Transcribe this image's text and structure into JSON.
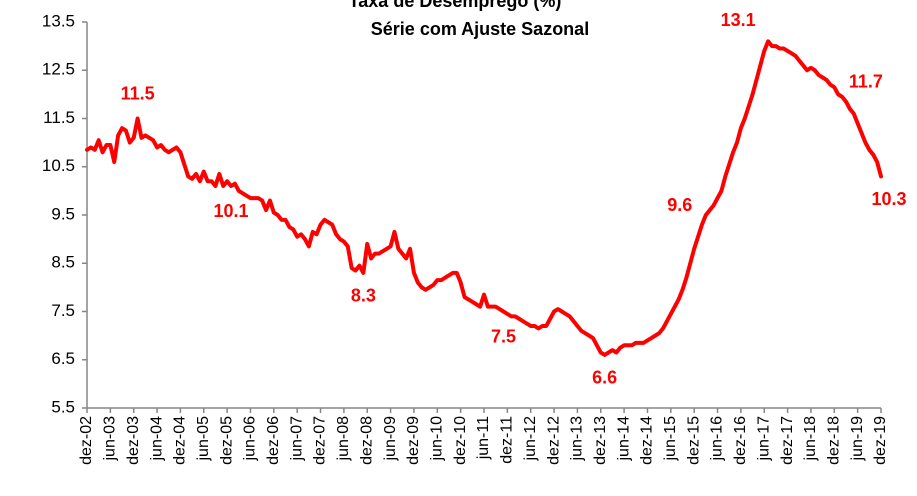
{
  "chart_data": {
    "type": "line",
    "title": "Taxa de Desemprego (%)",
    "subtitle": "Série com Ajuste Sazonal",
    "color": "#ff0000",
    "ylim": [
      5.5,
      13.5
    ],
    "yticks": [
      5.5,
      6.5,
      7.5,
      8.5,
      9.5,
      10.5,
      11.5,
      12.5,
      13.5
    ],
    "grid": false,
    "categories": [
      "dez-02",
      null,
      null,
      null,
      null,
      null,
      "jun-03",
      null,
      null,
      null,
      null,
      null,
      "dez-03",
      null,
      null,
      null,
      null,
      null,
      "jun-04",
      null,
      null,
      null,
      null,
      null,
      "dez-04",
      null,
      null,
      null,
      null,
      null,
      "jun-05",
      null,
      null,
      null,
      null,
      null,
      "dez-05",
      null,
      null,
      null,
      null,
      null,
      "jun-06",
      null,
      null,
      null,
      null,
      null,
      "dez-06",
      null,
      null,
      null,
      null,
      null,
      "jun-07",
      null,
      null,
      null,
      null,
      null,
      "dez-07",
      null,
      null,
      null,
      null,
      null,
      "jun-08",
      null,
      null,
      null,
      null,
      null,
      "dez-08",
      null,
      null,
      null,
      null,
      null,
      "jun-09",
      null,
      null,
      null,
      null,
      null,
      "dez-09",
      null,
      null,
      null,
      null,
      null,
      "jun-10",
      null,
      null,
      null,
      null,
      null,
      "dez-10",
      null,
      null,
      null,
      null,
      null,
      "jun-11",
      null,
      null,
      null,
      null,
      null,
      "dez-11",
      null,
      null,
      null,
      null,
      null,
      "jun-12",
      null,
      null,
      null,
      null,
      null,
      "dez-12",
      null,
      null,
      null,
      null,
      null,
      "jun-13",
      null,
      null,
      null,
      null,
      null,
      "dez-13",
      null,
      null,
      null,
      null,
      null,
      "jun-14",
      null,
      null,
      null,
      null,
      null,
      "dez-14",
      null,
      null,
      null,
      null,
      null,
      "jun-15",
      null,
      null,
      null,
      null,
      null,
      "dez-15",
      null,
      null,
      null,
      null,
      null,
      "jun-16",
      null,
      null,
      null,
      null,
      null,
      "dez-16",
      null,
      null,
      null,
      null,
      null,
      "jun-17",
      null,
      null,
      null,
      null,
      null,
      "dez-17",
      null,
      null,
      null,
      null,
      null,
      "jun-18",
      null,
      null,
      null,
      null,
      null,
      "dez-18",
      null,
      null,
      null,
      null,
      null,
      "jun-19",
      null,
      null,
      null,
      null,
      null,
      "dez-19"
    ],
    "values": [
      10.85,
      10.9,
      10.85,
      11.05,
      10.8,
      10.95,
      10.95,
      10.6,
      11.15,
      11.3,
      11.25,
      11.0,
      11.1,
      11.5,
      11.1,
      11.15,
      11.1,
      11.05,
      10.9,
      10.95,
      10.85,
      10.8,
      10.85,
      10.9,
      10.8,
      10.55,
      10.3,
      10.25,
      10.35,
      10.2,
      10.4,
      10.2,
      10.2,
      10.1,
      10.35,
      10.1,
      10.2,
      10.1,
      10.15,
      10.0,
      9.95,
      9.9,
      9.85,
      9.85,
      9.85,
      9.8,
      9.6,
      9.8,
      9.55,
      9.5,
      9.4,
      9.4,
      9.25,
      9.2,
      9.05,
      9.1,
      9.0,
      8.85,
      9.15,
      9.1,
      9.3,
      9.4,
      9.35,
      9.3,
      9.1,
      9.0,
      8.95,
      8.85,
      8.4,
      8.35,
      8.45,
      8.3,
      8.9,
      8.6,
      8.7,
      8.7,
      8.75,
      8.8,
      8.85,
      9.15,
      8.8,
      8.7,
      8.6,
      8.8,
      8.3,
      8.1,
      8.0,
      7.95,
      8.0,
      8.05,
      8.15,
      8.15,
      8.2,
      8.25,
      8.3,
      8.3,
      8.1,
      7.8,
      7.75,
      7.7,
      7.65,
      7.6,
      7.85,
      7.6,
      7.6,
      7.6,
      7.55,
      7.5,
      7.45,
      7.4,
      7.4,
      7.35,
      7.3,
      7.25,
      7.2,
      7.2,
      7.15,
      7.2,
      7.2,
      7.35,
      7.5,
      7.55,
      7.5,
      7.45,
      7.4,
      7.3,
      7.2,
      7.1,
      7.05,
      7.0,
      6.95,
      6.8,
      6.65,
      6.6,
      6.65,
      6.7,
      6.65,
      6.75,
      6.8,
      6.8,
      6.8,
      6.85,
      6.85,
      6.85,
      6.9,
      6.95,
      7.0,
      7.05,
      7.15,
      7.3,
      7.45,
      7.6,
      7.75,
      7.95,
      8.2,
      8.5,
      8.8,
      9.05,
      9.3,
      9.5,
      9.6,
      9.7,
      9.85,
      10.0,
      10.3,
      10.55,
      10.8,
      11.0,
      11.3,
      11.5,
      11.75,
      12.0,
      12.3,
      12.6,
      12.9,
      13.1,
      13.0,
      13.0,
      12.95,
      12.95,
      12.9,
      12.85,
      12.8,
      12.7,
      12.6,
      12.5,
      12.55,
      12.5,
      12.4,
      12.35,
      12.3,
      12.2,
      12.15,
      12.0,
      11.95,
      11.85,
      11.7,
      11.6,
      11.4,
      11.2,
      11.0,
      10.85,
      10.75,
      10.6,
      10.3
    ],
    "value_labels": [
      null,
      null,
      null,
      null,
      null,
      null,
      null,
      null,
      null,
      null,
      null,
      null,
      null,
      "11.5",
      null,
      null,
      null,
      null,
      null,
      null,
      null,
      null,
      null,
      null,
      null,
      null,
      null,
      null,
      null,
      null,
      null,
      null,
      null,
      null,
      null,
      null,
      null,
      "10.1",
      null,
      null,
      null,
      null,
      null,
      null,
      null,
      null,
      null,
      null,
      null,
      null,
      null,
      null,
      null,
      null,
      null,
      null,
      null,
      null,
      null,
      null,
      null,
      null,
      null,
      null,
      null,
      null,
      null,
      null,
      null,
      null,
      null,
      "8.3",
      null,
      null,
      null,
      null,
      null,
      null,
      null,
      null,
      null,
      null,
      null,
      null,
      null,
      null,
      null,
      null,
      null,
      null,
      null,
      null,
      null,
      null,
      null,
      null,
      null,
      null,
      null,
      null,
      null,
      null,
      null,
      null,
      null,
      null,
      null,
      "7.5",
      null,
      null,
      null,
      null,
      null,
      null,
      null,
      null,
      null,
      null,
      null,
      null,
      null,
      null,
      null,
      null,
      null,
      null,
      null,
      null,
      null,
      null,
      null,
      null,
      null,
      "6.6",
      null,
      null,
      null,
      null,
      null,
      null,
      null,
      null,
      null,
      null,
      null,
      null,
      null,
      null,
      null,
      null,
      null,
      null,
      null,
      null,
      null,
      null,
      null,
      null,
      null,
      null,
      "9.6",
      null,
      null,
      null,
      null,
      null,
      null,
      null,
      null,
      null,
      null,
      null,
      null,
      null,
      null,
      "13.1",
      null,
      null,
      null,
      null,
      null,
      null,
      null,
      null,
      null,
      null,
      null,
      null,
      null,
      null,
      null,
      null,
      null,
      null,
      null,
      null,
      "11.7",
      null,
      null,
      null,
      null,
      null,
      null,
      null,
      "10.3"
    ]
  }
}
